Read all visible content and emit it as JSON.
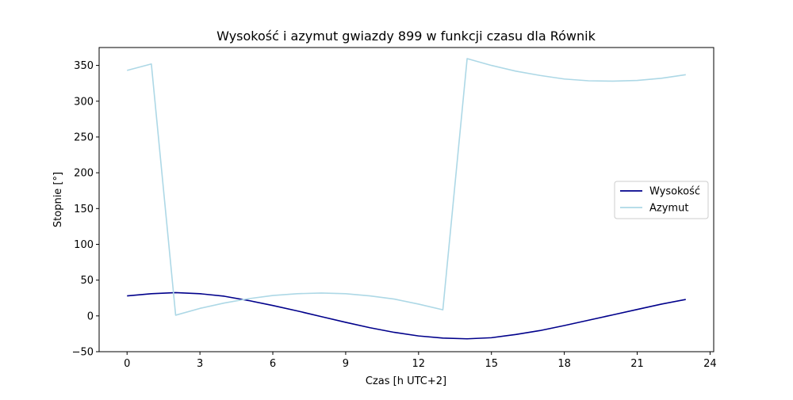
{
  "chart_data": {
    "type": "line",
    "title": "Wysokość i azymut gwiazdy 899 w funkcji czasu dla Równik",
    "xlabel": "Czas [h UTC+2]",
    "ylabel": "Stopnie [°]",
    "xlim": [
      -1.15,
      24.15
    ],
    "ylim": [
      -50,
      375
    ],
    "xticks": [
      0,
      3,
      6,
      9,
      12,
      15,
      18,
      21,
      24
    ],
    "yticks": [
      -50,
      0,
      50,
      100,
      150,
      200,
      250,
      300,
      350
    ],
    "grid": false,
    "legend_position": "center-right",
    "x": [
      0,
      1,
      2,
      3,
      4,
      5,
      6,
      7,
      8,
      9,
      10,
      11,
      12,
      13,
      14,
      15,
      16,
      17,
      18,
      19,
      20,
      21,
      22,
      23
    ],
    "series": [
      {
        "name": "Wysokość",
        "color": "#00008b",
        "values": [
          28,
          31,
          32.5,
          31,
          27.5,
          21.5,
          14.5,
          7,
          -1,
          -9,
          -16.5,
          -23,
          -28,
          -31,
          -32,
          -30.5,
          -26,
          -20.5,
          -13.5,
          -6,
          1.5,
          9,
          16.5,
          23
        ]
      },
      {
        "name": "Azymut",
        "color": "#add8e6",
        "values": [
          343,
          352,
          1,
          10.5,
          18,
          24,
          28.5,
          31,
          32,
          31,
          28,
          23.5,
          16.5,
          8.5,
          359.5,
          350,
          342,
          336,
          331,
          328.5,
          328,
          329,
          332,
          337
        ]
      }
    ]
  }
}
